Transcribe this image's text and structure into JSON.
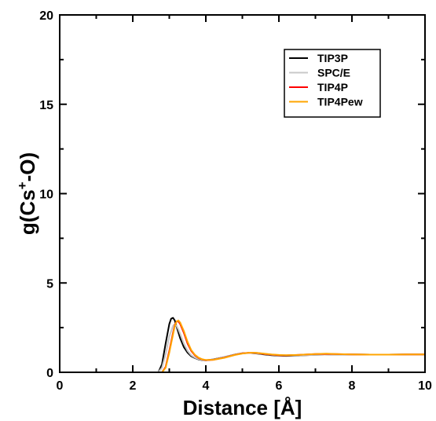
{
  "chart_data": {
    "type": "line",
    "xlabel": "Distance [Å]",
    "ylabel_parts": {
      "prefix": "g(Cs",
      "sup": "+",
      "suffix": "-O)"
    },
    "xlim": [
      0,
      10
    ],
    "ylim": [
      0,
      20
    ],
    "xticks": [
      0,
      2,
      4,
      6,
      8,
      10
    ],
    "yticks": [
      0,
      5,
      10,
      15,
      20
    ],
    "grid": false,
    "legend_position": "top-right",
    "series": [
      {
        "name": "TIP3P",
        "color": "#000000",
        "x": [
          2.7,
          2.8,
          2.9,
          3.0,
          3.05,
          3.1,
          3.15,
          3.2,
          3.3,
          3.4,
          3.5,
          3.6,
          3.7,
          3.8,
          3.9,
          4.0,
          4.2,
          4.5,
          4.8,
          5.0,
          5.2,
          5.4,
          5.6,
          5.8,
          6.0,
          6.2,
          6.5,
          7.0,
          7.5,
          8.0,
          8.5,
          9.0,
          9.5,
          10.0
        ],
        "y": [
          0.0,
          0.45,
          1.6,
          2.7,
          3.0,
          3.05,
          2.9,
          2.55,
          1.9,
          1.4,
          1.1,
          0.9,
          0.8,
          0.72,
          0.68,
          0.67,
          0.72,
          0.85,
          1.0,
          1.07,
          1.08,
          1.05,
          1.0,
          0.96,
          0.93,
          0.92,
          0.94,
          0.98,
          1.0,
          1.0,
          0.99,
          0.99,
          1.0,
          1.0
        ]
      },
      {
        "name": "SPC/E",
        "color": "#c8c8c8",
        "x": [
          2.7,
          2.8,
          2.9,
          3.0,
          3.1,
          3.15,
          3.2,
          3.25,
          3.3,
          3.4,
          3.5,
          3.6,
          3.7,
          3.8,
          3.9,
          4.0,
          4.2,
          4.5,
          4.8,
          5.0,
          5.2,
          5.4,
          5.6,
          5.8,
          6.0,
          6.2,
          6.5,
          7.0,
          7.5,
          8.0,
          8.5,
          9.0,
          9.5,
          10.0
        ],
        "y": [
          0.0,
          0.25,
          1.0,
          2.0,
          2.6,
          2.7,
          2.6,
          2.4,
          2.15,
          1.6,
          1.2,
          0.95,
          0.82,
          0.74,
          0.69,
          0.67,
          0.71,
          0.84,
          0.99,
          1.06,
          1.08,
          1.06,
          1.02,
          0.98,
          0.95,
          0.94,
          0.95,
          0.98,
          1.0,
          1.0,
          0.99,
          0.99,
          1.0,
          1.0
        ]
      },
      {
        "name": "TIP4P",
        "color": "#ff0000",
        "x": [
          2.8,
          2.9,
          3.0,
          3.1,
          3.15,
          3.2,
          3.25,
          3.3,
          3.4,
          3.5,
          3.6,
          3.7,
          3.8,
          3.9,
          4.0,
          4.2,
          4.5,
          4.8,
          5.0,
          5.2,
          5.4,
          5.6,
          5.8,
          6.0,
          6.2,
          6.5,
          7.0,
          7.3,
          7.5,
          8.0,
          8.5,
          9.0,
          9.5,
          10.0
        ],
        "y": [
          0.0,
          0.3,
          1.2,
          2.2,
          2.65,
          2.85,
          2.85,
          2.7,
          2.2,
          1.6,
          1.2,
          0.95,
          0.8,
          0.72,
          0.68,
          0.7,
          0.82,
          0.98,
          1.06,
          1.1,
          1.08,
          1.03,
          0.99,
          0.96,
          0.95,
          0.97,
          1.02,
          1.03,
          1.02,
          1.0,
          0.99,
          0.99,
          1.0,
          1.0
        ]
      },
      {
        "name": "TIP4Pew",
        "color": "#ffa500",
        "x": [
          2.8,
          2.9,
          3.0,
          3.1,
          3.15,
          3.2,
          3.25,
          3.3,
          3.4,
          3.5,
          3.6,
          3.7,
          3.8,
          3.9,
          4.0,
          4.2,
          4.5,
          4.8,
          5.0,
          5.2,
          5.4,
          5.6,
          5.8,
          6.0,
          6.2,
          6.5,
          7.0,
          7.3,
          7.5,
          8.0,
          8.5,
          9.0,
          9.5,
          10.0
        ],
        "y": [
          0.0,
          0.25,
          1.1,
          2.1,
          2.6,
          2.85,
          2.9,
          2.78,
          2.3,
          1.7,
          1.25,
          0.98,
          0.82,
          0.73,
          0.69,
          0.7,
          0.81,
          0.97,
          1.05,
          1.1,
          1.09,
          1.04,
          1.0,
          0.97,
          0.96,
          0.97,
          1.02,
          1.04,
          1.03,
          1.0,
          0.99,
          0.99,
          1.0,
          1.0
        ]
      }
    ]
  }
}
